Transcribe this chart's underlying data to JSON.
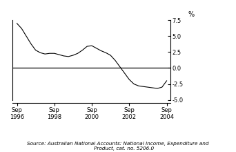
{
  "title": "",
  "ylabel": "%",
  "source_text": "Source: Australian National Accounts: National Income, Expenditure and\n        Product, cat. no. 5206.0",
  "xlim_start": 1996.5,
  "xlim_end": 2004.95,
  "ylim": [
    -5.5,
    8.5
  ],
  "yticks": [
    -5.0,
    -2.5,
    0.0,
    2.5,
    5.0,
    7.5
  ],
  "xtick_labels": [
    "Sep\n1996",
    "Sep\n1998",
    "Sep\n2000",
    "Sep\n2002",
    "Sep\n2004"
  ],
  "xtick_positions": [
    1996.75,
    1998.75,
    2000.75,
    2002.75,
    2004.75
  ],
  "line_color": "#000000",
  "background_color": "#ffffff",
  "x": [
    1996.75,
    1997.0,
    1997.25,
    1997.5,
    1997.75,
    1998.0,
    1998.25,
    1998.5,
    1998.75,
    1999.0,
    1999.25,
    1999.5,
    1999.75,
    2000.0,
    2000.25,
    2000.5,
    2000.75,
    2001.0,
    2001.25,
    2001.5,
    2001.75,
    2002.0,
    2002.25,
    2002.5,
    2002.75,
    2003.0,
    2003.25,
    2003.5,
    2003.75,
    2004.0,
    2004.25,
    2004.5,
    2004.75
  ],
  "y": [
    7.0,
    6.2,
    5.0,
    3.8,
    2.8,
    2.4,
    2.2,
    2.3,
    2.3,
    2.1,
    1.9,
    1.8,
    2.0,
    2.3,
    2.8,
    3.4,
    3.5,
    3.1,
    2.7,
    2.4,
    2.0,
    1.2,
    0.2,
    -0.8,
    -1.8,
    -2.5,
    -2.8,
    -2.9,
    -3.0,
    -3.1,
    -3.2,
    -3.0,
    -2.0
  ]
}
